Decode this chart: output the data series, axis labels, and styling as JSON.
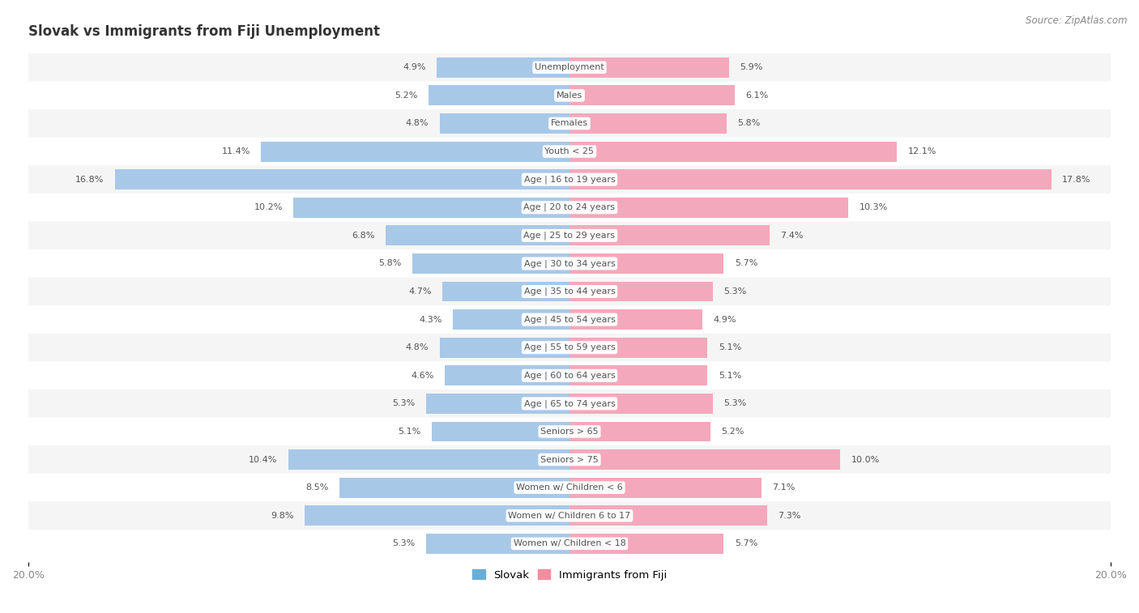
{
  "title": "Slovak vs Immigrants from Fiji Unemployment",
  "source": "Source: ZipAtlas.com",
  "categories": [
    "Unemployment",
    "Males",
    "Females",
    "Youth < 25",
    "Age | 16 to 19 years",
    "Age | 20 to 24 years",
    "Age | 25 to 29 years",
    "Age | 30 to 34 years",
    "Age | 35 to 44 years",
    "Age | 45 to 54 years",
    "Age | 55 to 59 years",
    "Age | 60 to 64 years",
    "Age | 65 to 74 years",
    "Seniors > 65",
    "Seniors > 75",
    "Women w/ Children < 6",
    "Women w/ Children 6 to 17",
    "Women w/ Children < 18"
  ],
  "slovak_values": [
    4.9,
    5.2,
    4.8,
    11.4,
    16.8,
    10.2,
    6.8,
    5.8,
    4.7,
    4.3,
    4.8,
    4.6,
    5.3,
    5.1,
    10.4,
    8.5,
    9.8,
    5.3
  ],
  "fiji_values": [
    5.9,
    6.1,
    5.8,
    12.1,
    17.8,
    10.3,
    7.4,
    5.7,
    5.3,
    4.9,
    5.1,
    5.1,
    5.3,
    5.2,
    10.0,
    7.1,
    7.3,
    5.7
  ],
  "max_val": 20.0,
  "slovak_color": "#a8c8e8",
  "fiji_color": "#f4a8bc",
  "row_bg_colors": [
    "#f5f5f5",
    "#ffffff"
  ],
  "label_bg_color": "#ffffff",
  "label_text_color": "#555555",
  "title_color": "#333333",
  "value_text_color": "#555555",
  "legend_slovak_color": "#6baed6",
  "legend_fiji_color": "#f48ca0",
  "axis_text_color": "#888888"
}
